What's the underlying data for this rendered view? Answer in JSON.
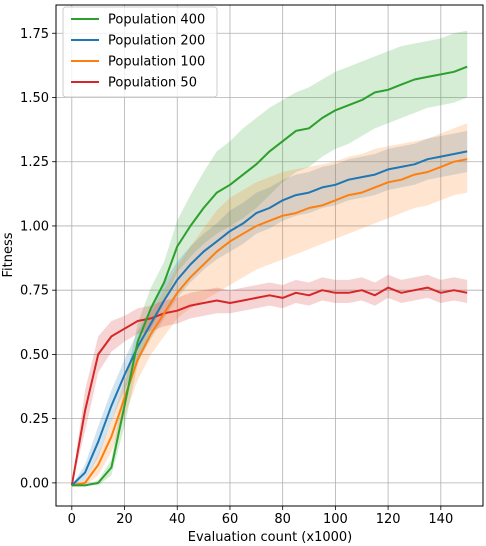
{
  "chart_data": {
    "type": "line",
    "title": "",
    "xlabel": "Evaluation count (x1000)",
    "ylabel": "Fitness",
    "xlim": [
      -6,
      156
    ],
    "ylim": [
      -0.09,
      1.86
    ],
    "xticks": [
      0,
      20,
      40,
      60,
      80,
      100,
      120,
      140
    ],
    "yticks": [
      0.0,
      0.25,
      0.5,
      0.75,
      1.0,
      1.25,
      1.5,
      1.75
    ],
    "xtick_labels": [
      "0",
      "20",
      "40",
      "60",
      "80",
      "100",
      "120",
      "140"
    ],
    "ytick_labels": [
      "0.00",
      "0.25",
      "0.50",
      "0.75",
      "1.00",
      "1.25",
      "1.50",
      "1.75"
    ],
    "grid": true,
    "legend": "top-left",
    "series": [
      {
        "name": "Population 400",
        "color": "#2ca02c",
        "x": [
          0,
          5,
          10,
          15,
          20,
          25,
          30,
          35,
          40,
          45,
          50,
          55,
          60,
          65,
          70,
          75,
          80,
          85,
          90,
          95,
          100,
          105,
          110,
          115,
          120,
          125,
          130,
          135,
          140,
          145,
          150
        ],
        "y": [
          -0.01,
          -0.01,
          0.0,
          0.06,
          0.3,
          0.55,
          0.68,
          0.78,
          0.92,
          1.0,
          1.07,
          1.13,
          1.16,
          1.2,
          1.24,
          1.29,
          1.33,
          1.37,
          1.38,
          1.42,
          1.45,
          1.47,
          1.49,
          1.52,
          1.53,
          1.55,
          1.57,
          1.58,
          1.59,
          1.6,
          1.62
        ],
        "lower": [
          -0.01,
          -0.01,
          -0.01,
          0.03,
          0.22,
          0.46,
          0.6,
          0.7,
          0.82,
          0.88,
          0.93,
          0.97,
          1.0,
          1.03,
          1.07,
          1.12,
          1.17,
          1.21,
          1.23,
          1.27,
          1.3,
          1.32,
          1.35,
          1.38,
          1.4,
          1.42,
          1.44,
          1.46,
          1.47,
          1.48,
          1.5
        ],
        "upper": [
          -0.01,
          -0.01,
          0.01,
          0.09,
          0.38,
          0.62,
          0.76,
          0.86,
          1.02,
          1.12,
          1.21,
          1.29,
          1.33,
          1.38,
          1.42,
          1.46,
          1.49,
          1.52,
          1.54,
          1.57,
          1.6,
          1.62,
          1.64,
          1.66,
          1.68,
          1.7,
          1.71,
          1.72,
          1.73,
          1.75,
          1.76
        ]
      },
      {
        "name": "Population 200",
        "color": "#1f77b4",
        "x": [
          0,
          5,
          10,
          15,
          20,
          25,
          30,
          35,
          40,
          45,
          50,
          55,
          60,
          65,
          70,
          75,
          80,
          85,
          90,
          95,
          100,
          105,
          110,
          115,
          120,
          125,
          130,
          135,
          140,
          145,
          150
        ],
        "y": [
          -0.01,
          0.04,
          0.16,
          0.3,
          0.42,
          0.53,
          0.62,
          0.71,
          0.79,
          0.85,
          0.9,
          0.94,
          0.98,
          1.01,
          1.05,
          1.07,
          1.1,
          1.12,
          1.13,
          1.15,
          1.16,
          1.18,
          1.19,
          1.2,
          1.22,
          1.23,
          1.24,
          1.26,
          1.27,
          1.28,
          1.29
        ],
        "lower": [
          -0.01,
          0.01,
          0.1,
          0.24,
          0.36,
          0.47,
          0.56,
          0.64,
          0.72,
          0.78,
          0.83,
          0.87,
          0.9,
          0.93,
          0.97,
          0.99,
          1.02,
          1.04,
          1.05,
          1.07,
          1.08,
          1.1,
          1.11,
          1.12,
          1.14,
          1.15,
          1.16,
          1.18,
          1.19,
          1.2,
          1.21
        ],
        "upper": [
          -0.01,
          0.07,
          0.22,
          0.36,
          0.48,
          0.59,
          0.68,
          0.78,
          0.86,
          0.92,
          0.97,
          1.01,
          1.06,
          1.09,
          1.13,
          1.15,
          1.18,
          1.2,
          1.21,
          1.23,
          1.24,
          1.26,
          1.27,
          1.28,
          1.3,
          1.31,
          1.32,
          1.34,
          1.35,
          1.36,
          1.37
        ]
      },
      {
        "name": "Population 100",
        "color": "#ff7f0e",
        "x": [
          0,
          5,
          10,
          15,
          20,
          25,
          30,
          35,
          40,
          45,
          50,
          55,
          60,
          65,
          70,
          75,
          80,
          85,
          90,
          95,
          100,
          105,
          110,
          115,
          120,
          125,
          130,
          135,
          140,
          145,
          150
        ],
        "y": [
          -0.01,
          0.0,
          0.07,
          0.18,
          0.33,
          0.48,
          0.58,
          0.66,
          0.74,
          0.8,
          0.85,
          0.9,
          0.94,
          0.97,
          1.0,
          1.02,
          1.04,
          1.05,
          1.07,
          1.08,
          1.1,
          1.12,
          1.13,
          1.15,
          1.17,
          1.18,
          1.2,
          1.21,
          1.23,
          1.25,
          1.26
        ],
        "lower": [
          -0.01,
          -0.01,
          0.03,
          0.12,
          0.26,
          0.4,
          0.5,
          0.57,
          0.64,
          0.68,
          0.71,
          0.74,
          0.77,
          0.8,
          0.83,
          0.85,
          0.87,
          0.89,
          0.91,
          0.93,
          0.95,
          0.97,
          0.99,
          1.01,
          1.03,
          1.05,
          1.07,
          1.08,
          1.1,
          1.12,
          1.13
        ],
        "upper": [
          -0.01,
          0.01,
          0.11,
          0.24,
          0.4,
          0.56,
          0.66,
          0.75,
          0.84,
          0.92,
          0.99,
          1.06,
          1.11,
          1.14,
          1.17,
          1.19,
          1.21,
          1.22,
          1.23,
          1.24,
          1.25,
          1.27,
          1.28,
          1.3,
          1.31,
          1.32,
          1.33,
          1.34,
          1.36,
          1.38,
          1.4
        ]
      },
      {
        "name": "Population 50",
        "color": "#d62728",
        "x": [
          0,
          5,
          10,
          15,
          20,
          25,
          30,
          35,
          40,
          45,
          50,
          55,
          60,
          65,
          70,
          75,
          80,
          85,
          90,
          95,
          100,
          105,
          110,
          115,
          120,
          125,
          130,
          135,
          140,
          145,
          150
        ],
        "y": [
          -0.01,
          0.28,
          0.5,
          0.57,
          0.6,
          0.63,
          0.64,
          0.66,
          0.67,
          0.69,
          0.7,
          0.71,
          0.7,
          0.71,
          0.72,
          0.73,
          0.72,
          0.74,
          0.73,
          0.75,
          0.74,
          0.74,
          0.75,
          0.73,
          0.76,
          0.74,
          0.75,
          0.76,
          0.74,
          0.75,
          0.74
        ],
        "lower": [
          -0.01,
          0.2,
          0.43,
          0.51,
          0.55,
          0.58,
          0.59,
          0.61,
          0.62,
          0.64,
          0.65,
          0.66,
          0.66,
          0.67,
          0.68,
          0.69,
          0.68,
          0.7,
          0.69,
          0.71,
          0.7,
          0.7,
          0.71,
          0.69,
          0.72,
          0.7,
          0.71,
          0.72,
          0.7,
          0.71,
          0.7
        ],
        "upper": [
          -0.01,
          0.36,
          0.57,
          0.63,
          0.65,
          0.68,
          0.69,
          0.71,
          0.72,
          0.74,
          0.75,
          0.76,
          0.75,
          0.76,
          0.77,
          0.78,
          0.77,
          0.79,
          0.78,
          0.8,
          0.79,
          0.79,
          0.8,
          0.78,
          0.81,
          0.79,
          0.8,
          0.81,
          0.79,
          0.8,
          0.79
        ]
      }
    ]
  }
}
